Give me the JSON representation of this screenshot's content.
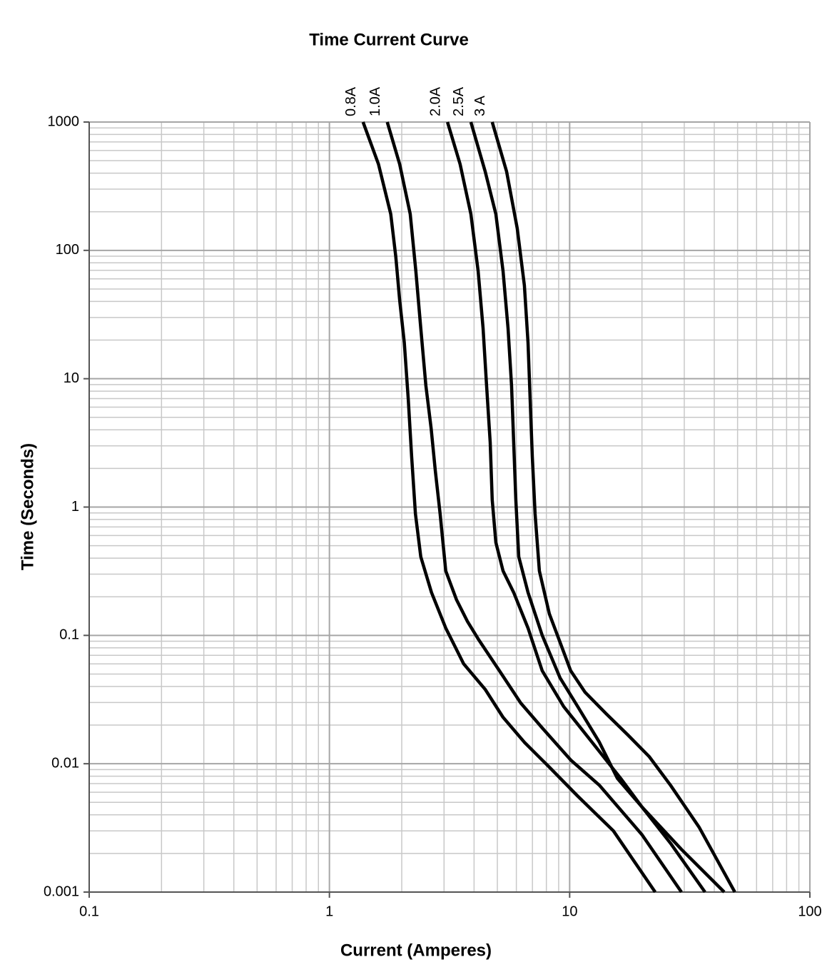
{
  "chart_data": {
    "type": "line",
    "title": "Time Current Curve",
    "x_label": "Current (Amperes)",
    "y_label": "Time (Seconds)",
    "log_x": true,
    "log_y": true,
    "grid": true,
    "minor_grid": true,
    "xlim": [
      0.1,
      100
    ],
    "xticks": [
      0.1,
      1,
      10,
      100
    ],
    "ylim": [
      0.001,
      1000
    ],
    "yticks": [
      0.001,
      0.01,
      0.1,
      1,
      10,
      100,
      1000
    ],
    "series": [
      {
        "name": "0.8A",
        "color": "#000000",
        "x": [
          1.38,
          1.6,
          1.8,
          1.89,
          1.96,
          2.05,
          2.13,
          2.2,
          2.28,
          2.4,
          2.66,
          3.05,
          3.62,
          4.45,
          5.28,
          6.48,
          8.23,
          10.8,
          15.2,
          22.7
        ],
        "values": [
          1000,
          470,
          192,
          89,
          41,
          19.1,
          6.86,
          2.47,
          0.885,
          0.41,
          0.216,
          0.114,
          0.06,
          0.038,
          0.023,
          0.0147,
          0.0094,
          0.0056,
          0.003,
          0.001
        ]
      },
      {
        "name": "1.0A",
        "color": "#000000",
        "x": [
          1.74,
          1.96,
          2.17,
          2.29,
          2.4,
          2.52,
          2.65,
          2.76,
          2.89,
          3.05,
          3.38,
          3.75,
          4.16,
          5.1,
          6.26,
          7.69,
          10.1,
          13.3,
          20.0,
          29.2
        ],
        "values": [
          1000,
          470,
          192,
          68.8,
          24.7,
          8.87,
          4.11,
          1.91,
          0.885,
          0.318,
          0.19,
          0.129,
          0.094,
          0.053,
          0.0297,
          0.019,
          0.0107,
          0.0068,
          0.0028,
          0.001
        ]
      },
      {
        "name": "2.0A",
        "color": "#000000",
        "x": [
          3.1,
          3.5,
          3.88,
          4.16,
          4.36,
          4.51,
          4.67,
          4.76,
          4.93,
          5.28,
          5.85,
          6.71,
          7.69,
          9.44,
          12.4,
          16.3,
          20.0,
          26.3,
          36.6
        ],
        "values": [
          1000,
          470,
          192,
          68.8,
          24.7,
          8.87,
          3.18,
          1.14,
          0.53,
          0.318,
          0.216,
          0.114,
          0.053,
          0.0279,
          0.0147,
          0.0077,
          0.0046,
          0.0024,
          0.001
        ]
      },
      {
        "name": "2.5A",
        "color": "#000000",
        "x": [
          3.88,
          4.45,
          4.93,
          5.28,
          5.54,
          5.73,
          5.85,
          5.97,
          6.14,
          6.71,
          7.69,
          9.13,
          10.8,
          13.3,
          15.8,
          20.0,
          29.2,
          44.0
        ],
        "values": [
          1000,
          413,
          192,
          68.8,
          24.7,
          8.87,
          3.18,
          1.14,
          0.41,
          0.216,
          0.1,
          0.0465,
          0.0279,
          0.0147,
          0.0077,
          0.0046,
          0.00215,
          0.001
        ]
      },
      {
        "name": "3 A",
        "color": "#000000",
        "x": [
          4.76,
          5.46,
          6.05,
          6.48,
          6.71,
          6.85,
          6.99,
          7.18,
          7.48,
          8.23,
          9.13,
          10.1,
          11.6,
          14.2,
          17.5,
          21.4,
          26.3,
          34.6,
          48.7
        ],
        "values": [
          1000,
          413,
          148,
          53.3,
          19.1,
          6.86,
          2.47,
          0.885,
          0.318,
          0.147,
          0.088,
          0.053,
          0.036,
          0.0245,
          0.0167,
          0.0114,
          0.0068,
          0.0032,
          0.001
        ]
      }
    ]
  }
}
